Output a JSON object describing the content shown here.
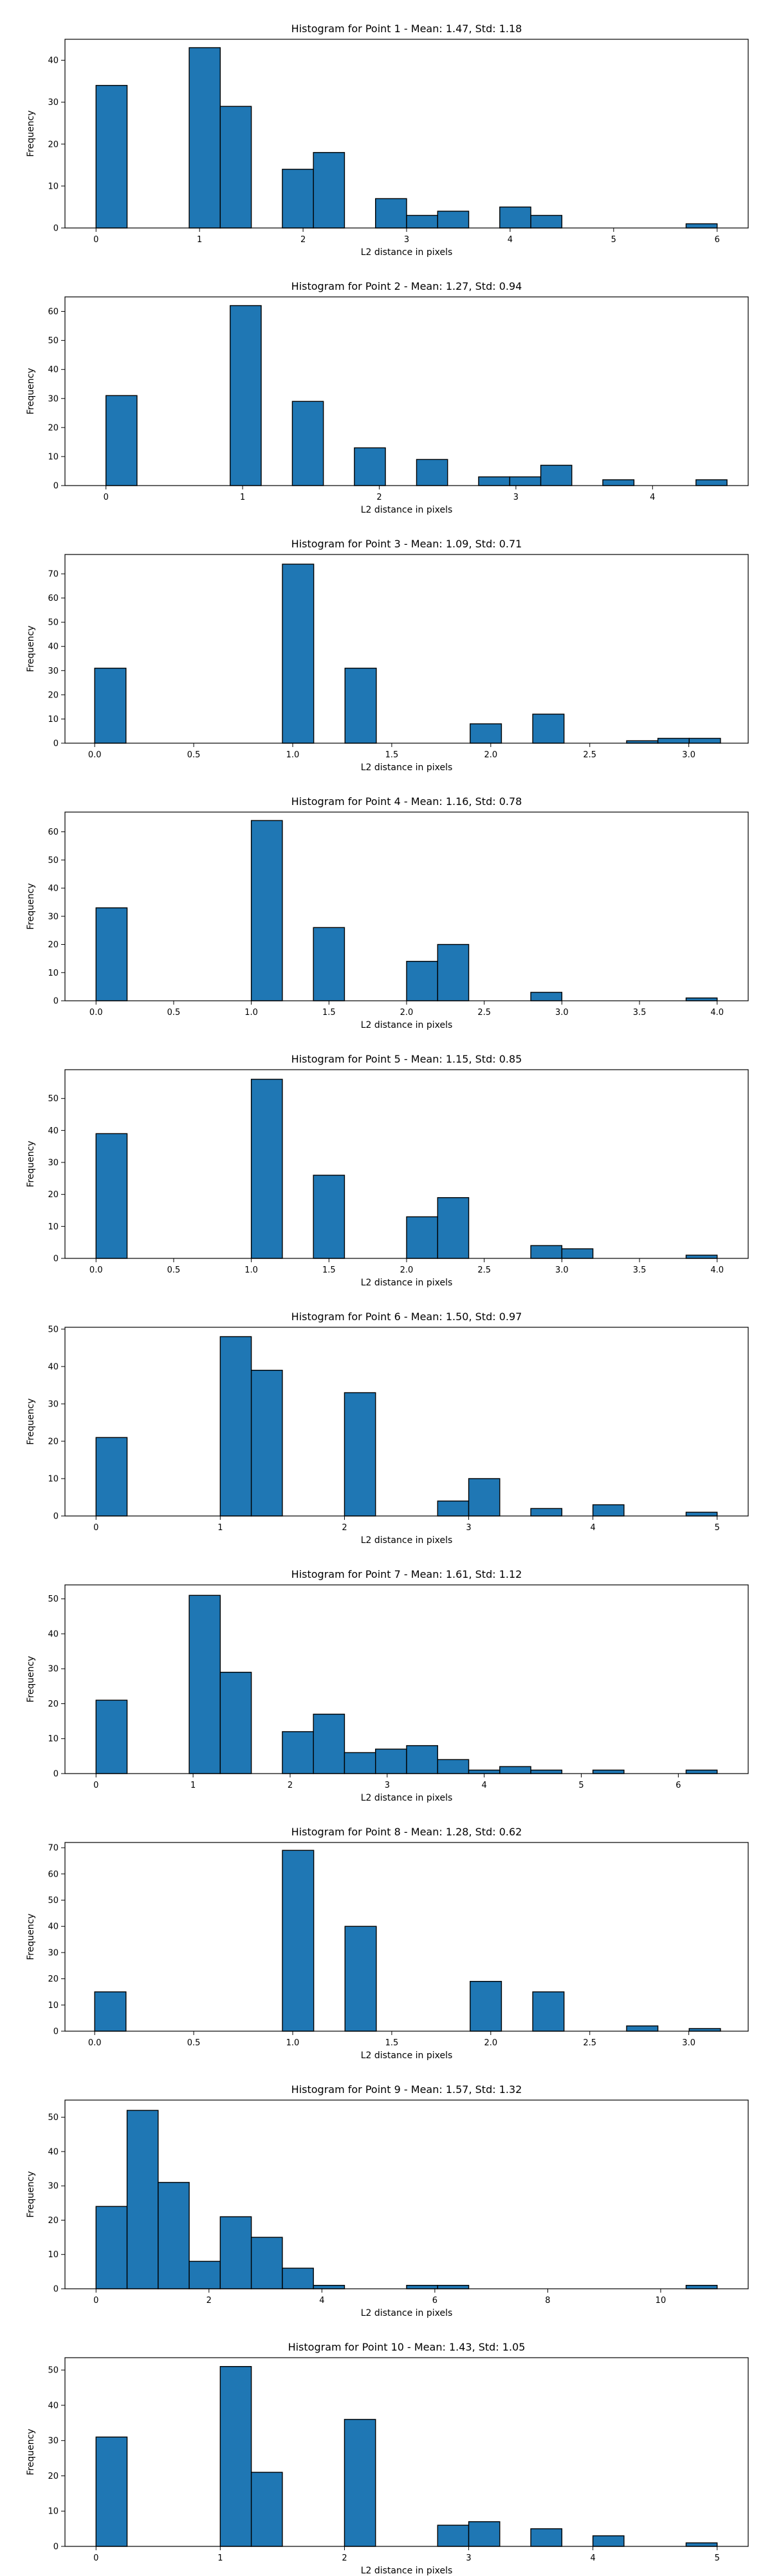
{
  "chart_data": [
    {
      "type": "bar",
      "title": "Histogram for Point 1 - Mean: 1.47, Std: 1.18",
      "xlabel": "L2 distance in pixels",
      "ylabel": "Frequency",
      "xlim": [
        -0.3,
        6.3
      ],
      "ylim": [
        0,
        45
      ],
      "xticks": [
        0,
        1,
        2,
        3,
        4,
        5,
        6
      ],
      "yticks": [
        0,
        10,
        20,
        30,
        40
      ],
      "xtick_labels": [
        "0",
        "1",
        "2",
        "3",
        "4",
        "5",
        "6"
      ],
      "ytick_labels": [
        "0",
        "10",
        "20",
        "30",
        "40"
      ],
      "bins": [
        0,
        0.3,
        0.6,
        0.9,
        1.2,
        1.5,
        1.8,
        2.1,
        2.4,
        2.7,
        3.0,
        3.3,
        3.6,
        3.9,
        4.2,
        4.5,
        4.8,
        5.1,
        5.4,
        5.7,
        6.0
      ],
      "counts": [
        34,
        0,
        0,
        43,
        29,
        0,
        14,
        18,
        0,
        7,
        3,
        4,
        0,
        5,
        3,
        0,
        0,
        0,
        0,
        1
      ],
      "color": "#1f77b4"
    },
    {
      "type": "bar",
      "title": "Histogram for Point 2 - Mean: 1.27, Std: 0.94",
      "xlabel": "L2 distance in pixels",
      "ylabel": "Frequency",
      "xlim": [
        -0.3,
        4.7
      ],
      "ylim": [
        0,
        65
      ],
      "xticks": [
        0,
        1,
        2,
        3,
        4
      ],
      "yticks": [
        0,
        10,
        20,
        30,
        40,
        50,
        60
      ],
      "xtick_labels": [
        "0",
        "1",
        "2",
        "3",
        "4"
      ],
      "ytick_labels": [
        "0",
        "10",
        "20",
        "30",
        "40",
        "50",
        "60"
      ],
      "bins": [
        0,
        0.227,
        0.455,
        0.682,
        0.909,
        1.136,
        1.364,
        1.591,
        1.818,
        2.045,
        2.273,
        2.5,
        2.727,
        2.955,
        3.182,
        3.409,
        3.636,
        3.864,
        4.091,
        4.318,
        4.545
      ],
      "counts": [
        31,
        0,
        0,
        0,
        62,
        0,
        29,
        0,
        13,
        0,
        9,
        0,
        3,
        3,
        7,
        0,
        2,
        0,
        0,
        2
      ],
      "color": "#1f77b4"
    },
    {
      "type": "bar",
      "title": "Histogram for Point 3 - Mean: 1.09, Std: 0.71",
      "xlabel": "L2 distance in pixels",
      "ylabel": "Frequency",
      "xlim": [
        -0.15,
        3.3
      ],
      "ylim": [
        0,
        78
      ],
      "xticks": [
        0,
        0.5,
        1.0,
        1.5,
        2.0,
        2.5,
        3.0
      ],
      "yticks": [
        0,
        10,
        20,
        30,
        40,
        50,
        60,
        70
      ],
      "xtick_labels": [
        "0.0",
        "0.5",
        "1.0",
        "1.5",
        "2.0",
        "2.5",
        "3.0"
      ],
      "ytick_labels": [
        "0",
        "10",
        "20",
        "30",
        "40",
        "50",
        "60",
        "70"
      ],
      "bins": [
        0,
        0.158,
        0.316,
        0.474,
        0.632,
        0.79,
        0.948,
        1.106,
        1.264,
        1.422,
        1.58,
        1.738,
        1.896,
        2.054,
        2.212,
        2.37,
        2.528,
        2.686,
        2.844,
        3.002,
        3.16
      ],
      "counts": [
        31,
        0,
        0,
        0,
        0,
        0,
        74,
        0,
        31,
        0,
        0,
        0,
        8,
        0,
        12,
        0,
        0,
        1,
        2,
        2
      ],
      "color": "#1f77b4"
    },
    {
      "type": "bar",
      "title": "Histogram for Point 4 - Mean: 1.16, Std: 0.78",
      "xlabel": "L2 distance in pixels",
      "ylabel": "Frequency",
      "xlim": [
        -0.2,
        4.2
      ],
      "ylim": [
        0,
        67
      ],
      "xticks": [
        0,
        0.5,
        1.0,
        1.5,
        2.0,
        2.5,
        3.0,
        3.5,
        4.0
      ],
      "yticks": [
        0,
        10,
        20,
        30,
        40,
        50,
        60
      ],
      "xtick_labels": [
        "0.0",
        "0.5",
        "1.0",
        "1.5",
        "2.0",
        "2.5",
        "3.0",
        "3.5",
        "4.0"
      ],
      "ytick_labels": [
        "0",
        "10",
        "20",
        "30",
        "40",
        "50",
        "60"
      ],
      "bins": [
        0,
        0.2,
        0.4,
        0.6,
        0.8,
        1.0,
        1.2,
        1.4,
        1.6,
        1.8,
        2.0,
        2.2,
        2.4,
        2.6,
        2.8,
        3.0,
        3.2,
        3.4,
        3.6,
        3.8,
        4.0
      ],
      "counts": [
        33,
        0,
        0,
        0,
        0,
        64,
        0,
        26,
        0,
        0,
        14,
        20,
        0,
        0,
        3,
        0,
        0,
        0,
        0,
        1
      ],
      "color": "#1f77b4"
    },
    {
      "type": "bar",
      "title": "Histogram for Point 5 - Mean: 1.15, Std: 0.85",
      "xlabel": "L2 distance in pixels",
      "ylabel": "Frequency",
      "xlim": [
        -0.2,
        4.2
      ],
      "ylim": [
        0,
        59
      ],
      "xticks": [
        0,
        0.5,
        1.0,
        1.5,
        2.0,
        2.5,
        3.0,
        3.5,
        4.0
      ],
      "yticks": [
        0,
        10,
        20,
        30,
        40,
        50
      ],
      "xtick_labels": [
        "0.0",
        "0.5",
        "1.0",
        "1.5",
        "2.0",
        "2.5",
        "3.0",
        "3.5",
        "4.0"
      ],
      "ytick_labels": [
        "0",
        "10",
        "20",
        "30",
        "40",
        "50"
      ],
      "bins": [
        0,
        0.2,
        0.4,
        0.6,
        0.8,
        1.0,
        1.2,
        1.4,
        1.6,
        1.8,
        2.0,
        2.2,
        2.4,
        2.6,
        2.8,
        3.0,
        3.2,
        3.4,
        3.6,
        3.8,
        4.0
      ],
      "counts": [
        39,
        0,
        0,
        0,
        0,
        56,
        0,
        26,
        0,
        0,
        13,
        19,
        0,
        0,
        4,
        3,
        0,
        0,
        0,
        1
      ],
      "color": "#1f77b4"
    },
    {
      "type": "bar",
      "title": "Histogram for Point 6 - Mean: 1.50, Std: 0.97",
      "xlabel": "L2 distance in pixels",
      "ylabel": "Frequency",
      "xlim": [
        -0.25,
        5.25
      ],
      "ylim": [
        0,
        50.5
      ],
      "xticks": [
        0,
        1,
        2,
        3,
        4,
        5
      ],
      "yticks": [
        0,
        10,
        20,
        30,
        40,
        50
      ],
      "xtick_labels": [
        "0",
        "1",
        "2",
        "3",
        "4",
        "5"
      ],
      "ytick_labels": [
        "0",
        "10",
        "20",
        "30",
        "40",
        "50"
      ],
      "bins": [
        0,
        0.25,
        0.5,
        0.75,
        1.0,
        1.25,
        1.5,
        1.75,
        2.0,
        2.25,
        2.5,
        2.75,
        3.0,
        3.25,
        3.5,
        3.75,
        4.0,
        4.25,
        4.5,
        4.75,
        5.0
      ],
      "counts": [
        21,
        0,
        0,
        0,
        48,
        39,
        0,
        0,
        33,
        0,
        0,
        4,
        10,
        0,
        2,
        0,
        3,
        0,
        0,
        1
      ],
      "color": "#1f77b4"
    },
    {
      "type": "bar",
      "title": "Histogram for Point 7 - Mean: 1.61, Std: 1.12",
      "xlabel": "L2 distance in pixels",
      "ylabel": "Frequency",
      "xlim": [
        -0.32,
        6.72
      ],
      "ylim": [
        0,
        54
      ],
      "xticks": [
        0,
        1,
        2,
        3,
        4,
        5,
        6
      ],
      "yticks": [
        0,
        10,
        20,
        30,
        40,
        50
      ],
      "xtick_labels": [
        "0",
        "1",
        "2",
        "3",
        "4",
        "5",
        "6"
      ],
      "ytick_labels": [
        "0",
        "10",
        "20",
        "30",
        "40",
        "50"
      ],
      "bins": [
        0,
        0.32,
        0.64,
        0.96,
        1.28,
        1.6,
        1.92,
        2.24,
        2.56,
        2.88,
        3.2,
        3.52,
        3.84,
        4.16,
        4.48,
        4.8,
        5.12,
        5.44,
        5.76,
        6.08,
        6.4
      ],
      "counts": [
        21,
        0,
        0,
        51,
        29,
        0,
        12,
        17,
        6,
        7,
        8,
        4,
        1,
        2,
        1,
        0,
        1,
        0,
        0,
        1
      ],
      "color": "#1f77b4"
    },
    {
      "type": "bar",
      "title": "Histogram for Point 8 - Mean: 1.28, Std: 0.62",
      "xlabel": "L2 distance in pixels",
      "ylabel": "Frequency",
      "xlim": [
        -0.15,
        3.3
      ],
      "ylim": [
        0,
        72
      ],
      "xticks": [
        0,
        0.5,
        1.0,
        1.5,
        2.0,
        2.5,
        3.0
      ],
      "yticks": [
        0,
        10,
        20,
        30,
        40,
        50,
        60,
        70
      ],
      "xtick_labels": [
        "0.0",
        "0.5",
        "1.0",
        "1.5",
        "2.0",
        "2.5",
        "3.0"
      ],
      "ytick_labels": [
        "0",
        "10",
        "20",
        "30",
        "40",
        "50",
        "60",
        "70"
      ],
      "bins": [
        0,
        0.158,
        0.316,
        0.474,
        0.632,
        0.79,
        0.948,
        1.106,
        1.264,
        1.422,
        1.58,
        1.738,
        1.896,
        2.054,
        2.212,
        2.37,
        2.528,
        2.686,
        2.844,
        3.002,
        3.16
      ],
      "counts": [
        15,
        0,
        0,
        0,
        0,
        0,
        69,
        0,
        40,
        0,
        0,
        0,
        19,
        0,
        15,
        0,
        0,
        2,
        0,
        1
      ],
      "color": "#1f77b4"
    },
    {
      "type": "bar",
      "title": "Histogram for Point 9 - Mean: 1.57, Std: 1.32",
      "xlabel": "L2 distance in pixels",
      "ylabel": "Frequency",
      "xlim": [
        -0.55,
        11.55
      ],
      "ylim": [
        0,
        55
      ],
      "xticks": [
        0,
        2,
        4,
        6,
        8,
        10
      ],
      "yticks": [
        0,
        10,
        20,
        30,
        40,
        50
      ],
      "xtick_labels": [
        "0",
        "2",
        "4",
        "6",
        "8",
        "10"
      ],
      "ytick_labels": [
        "0",
        "10",
        "20",
        "30",
        "40",
        "50"
      ],
      "bins": [
        0,
        0.55,
        1.1,
        1.65,
        2.2,
        2.75,
        3.3,
        3.85,
        4.4,
        4.95,
        5.5,
        6.05,
        6.6,
        7.15,
        7.7,
        8.25,
        8.8,
        9.35,
        9.9,
        10.45,
        11.0
      ],
      "counts": [
        24,
        52,
        31,
        8,
        21,
        15,
        6,
        1,
        0,
        0,
        1,
        1,
        0,
        0,
        0,
        0,
        0,
        0,
        0,
        1
      ],
      "color": "#1f77b4"
    },
    {
      "type": "bar",
      "title": "Histogram for Point 10 - Mean: 1.43, Std: 1.05",
      "xlabel": "L2 distance in pixels",
      "ylabel": "Frequency",
      "xlim": [
        -0.25,
        5.25
      ],
      "ylim": [
        0,
        53.5
      ],
      "xticks": [
        0,
        1,
        2,
        3,
        4,
        5
      ],
      "yticks": [
        0,
        10,
        20,
        30,
        40,
        50
      ],
      "xtick_labels": [
        "0",
        "1",
        "2",
        "3",
        "4",
        "5"
      ],
      "ytick_labels": [
        "0",
        "10",
        "20",
        "30",
        "40",
        "50"
      ],
      "bins": [
        0,
        0.25,
        0.5,
        0.75,
        1.0,
        1.25,
        1.5,
        1.75,
        2.0,
        2.25,
        2.5,
        2.75,
        3.0,
        3.25,
        3.5,
        3.75,
        4.0,
        4.25,
        4.5,
        4.75,
        5.0
      ],
      "counts": [
        31,
        0,
        0,
        0,
        51,
        21,
        0,
        0,
        36,
        0,
        0,
        6,
        7,
        0,
        5,
        0,
        3,
        0,
        0,
        1
      ],
      "color": "#1f77b4"
    }
  ]
}
